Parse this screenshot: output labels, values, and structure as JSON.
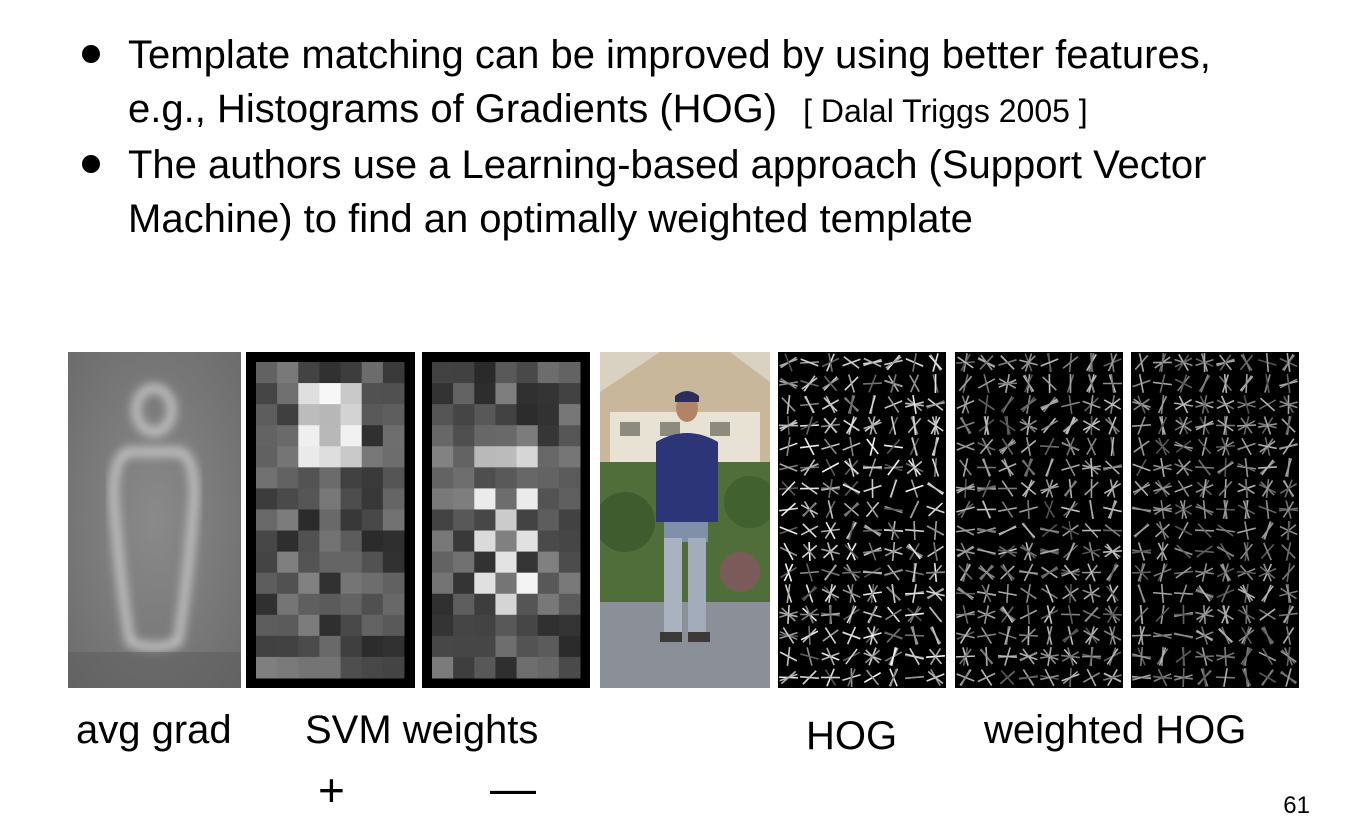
{
  "bullets": [
    {
      "line1": "Template matching can be improved by using better features,",
      "line2": "e.g., Histograms of Gradients (HOG)",
      "cite": "[ Dalal Triggs 2005 ]"
    },
    {
      "line1": "The authors use a Learning-based approach (Support Vector",
      "line2": "Machine) to find an optimally weighted template"
    }
  ],
  "labels": {
    "avg_grad": "avg grad",
    "svm_weights": "SVM weights",
    "plus": "+",
    "minus": "—",
    "hog": "HOG",
    "weighted_hog": "weighted HOG"
  },
  "page_number": "61"
}
